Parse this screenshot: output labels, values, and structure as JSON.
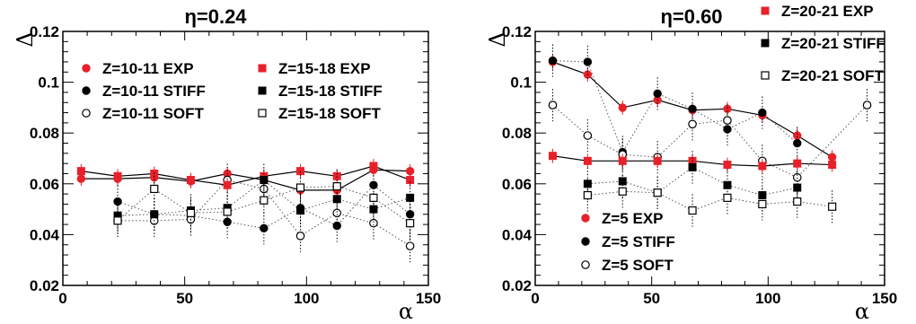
{
  "chart_data": [
    {
      "type": "scatter",
      "title": "η=0.24",
      "xlabel": "α",
      "ylabel": "Δ",
      "xlim": [
        0,
        150
      ],
      "ylim": [
        0.02,
        0.12
      ],
      "xticks": [
        0,
        50,
        100,
        150
      ],
      "yticks": [
        0.02,
        0.04,
        0.06,
        0.08,
        0.1,
        0.12
      ],
      "ytick_labels": [
        "0.02",
        "0.04",
        "0.06",
        "0.08",
        "0.1",
        "0.12"
      ],
      "legend_placement": "inside-top",
      "series": [
        {
          "name": "Z=10-11 EXP",
          "marker": "filled-circle",
          "color": "#e8202a",
          "line": "solid",
          "x": [
            7.5,
            22.5,
            37.5,
            52.5,
            67.5,
            82.5,
            97.5,
            112.5,
            127.5,
            142.5
          ],
          "y": [
            0.062,
            0.062,
            0.0625,
            0.061,
            0.064,
            0.0615,
            0.0575,
            0.0575,
            0.0655,
            0.065
          ]
        },
        {
          "name": "Z=10-11 STIFF",
          "marker": "filled-circle",
          "color": "#000000",
          "line": "dotted",
          "x": [
            22.5,
            37.5,
            52.5,
            67.5,
            82.5,
            97.5,
            112.5,
            127.5,
            142.5
          ],
          "y": [
            0.053,
            0.048,
            0.0475,
            0.045,
            0.0425,
            0.0505,
            0.0435,
            0.0595,
            0.048
          ]
        },
        {
          "name": "Z=10-11 SOFT",
          "marker": "open-circle",
          "color": "#000000",
          "line": "dotted",
          "x": [
            22.5,
            37.5,
            52.5,
            67.5,
            82.5,
            97.5,
            112.5,
            127.5,
            142.5
          ],
          "y": [
            0.0455,
            0.0455,
            0.046,
            0.0615,
            0.058,
            0.0395,
            0.0485,
            0.0445,
            0.0355
          ]
        },
        {
          "name": "Z=15-18 EXP",
          "marker": "filled-square",
          "color": "#e8202a",
          "line": "solid",
          "x": [
            7.5,
            22.5,
            37.5,
            52.5,
            67.5,
            82.5,
            97.5,
            112.5,
            127.5,
            142.5
          ],
          "y": [
            0.065,
            0.063,
            0.064,
            0.0615,
            0.0595,
            0.063,
            0.065,
            0.063,
            0.067,
            0.0615
          ]
        },
        {
          "name": "Z=15-18 STIFF",
          "marker": "filled-square",
          "color": "#000000",
          "line": "dotted",
          "x": [
            22.5,
            37.5,
            52.5,
            67.5,
            82.5,
            97.5,
            112.5,
            127.5,
            142.5
          ],
          "y": [
            0.0475,
            0.048,
            0.0495,
            0.0505,
            0.0615,
            0.0495,
            0.054,
            0.05,
            0.0545
          ]
        },
        {
          "name": "Z=15-18 SOFT",
          "marker": "open-square",
          "color": "#000000",
          "line": "dotted",
          "x": [
            22.5,
            37.5,
            52.5,
            67.5,
            82.5,
            97.5,
            112.5,
            127.5,
            142.5
          ],
          "y": [
            0.0455,
            0.058,
            0.0485,
            0.049,
            0.0535,
            0.0585,
            0.059,
            0.0545,
            0.0445
          ]
        }
      ]
    },
    {
      "type": "scatter",
      "title": "η=0.60",
      "xlabel": "α",
      "ylabel": "Δ",
      "xlim": [
        0,
        150
      ],
      "ylim": [
        0.02,
        0.12
      ],
      "xticks": [
        0,
        50,
        100,
        150
      ],
      "yticks": [
        0.02,
        0.04,
        0.06,
        0.08,
        0.1,
        0.12
      ],
      "ytick_labels": [
        "0.02",
        "0.04",
        "0.06",
        "0.08",
        "0.1",
        "0.12"
      ],
      "legend_placement": "top-right and bottom-left",
      "series": [
        {
          "name": "Z=5 EXP",
          "marker": "filled-circle",
          "color": "#e8202a",
          "line": "solid",
          "x": [
            7.5,
            22.5,
            37.5,
            52.5,
            67.5,
            82.5,
            97.5,
            112.5,
            127.5
          ],
          "y": [
            0.108,
            0.103,
            0.09,
            0.093,
            0.089,
            0.0895,
            0.087,
            0.079,
            0.0705
          ]
        },
        {
          "name": "Z=5 STIFF",
          "marker": "filled-circle",
          "color": "#000000",
          "line": "dotted",
          "x": [
            7.5,
            22.5,
            37.5,
            52.5,
            67.5,
            82.5,
            97.5,
            112.5
          ],
          "y": [
            0.1085,
            0.108,
            0.0725,
            0.0955,
            0.0895,
            0.0815,
            0.088,
            0.076
          ]
        },
        {
          "name": "Z=5 SOFT",
          "marker": "open-circle",
          "color": "#000000",
          "line": "dotted",
          "x": [
            7.5,
            22.5,
            37.5,
            52.5,
            67.5,
            82.5,
            97.5,
            112.5,
            142.5
          ],
          "y": [
            0.091,
            0.079,
            0.0715,
            0.0705,
            0.0835,
            0.085,
            0.069,
            0.0625,
            0.091
          ]
        },
        {
          "name": "Z=20-21 EXP",
          "marker": "filled-square",
          "color": "#e8202a",
          "line": "solid",
          "x": [
            7.5,
            22.5,
            37.5,
            52.5,
            67.5,
            82.5,
            97.5,
            112.5,
            127.5
          ],
          "y": [
            0.071,
            0.069,
            0.069,
            0.069,
            0.069,
            0.0675,
            0.067,
            0.068,
            0.0675
          ]
        },
        {
          "name": "Z=20-21 STIFF",
          "marker": "filled-square",
          "color": "#000000",
          "line": "dotted",
          "x": [
            22.5,
            37.5,
            52.5,
            67.5,
            82.5,
            97.5,
            112.5
          ],
          "y": [
            0.06,
            0.061,
            0.0565,
            0.0665,
            0.0595,
            0.0555,
            0.0585
          ]
        },
        {
          "name": "Z=20-21 SOFT",
          "marker": "open-square",
          "color": "#000000",
          "line": "dotted",
          "x": [
            22.5,
            37.5,
            52.5,
            67.5,
            82.5,
            97.5,
            112.5,
            127.5
          ],
          "y": [
            0.0555,
            0.057,
            0.0565,
            0.0495,
            0.0545,
            0.052,
            0.053,
            0.051
          ]
        }
      ]
    }
  ]
}
